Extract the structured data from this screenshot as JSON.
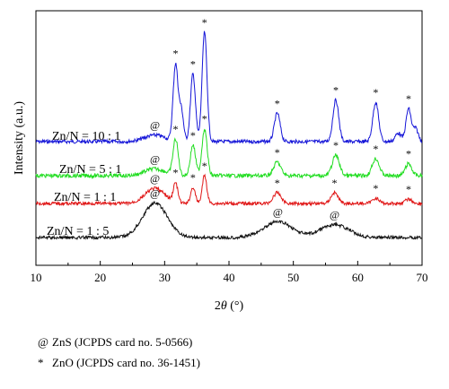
{
  "chart_data": {
    "type": "line",
    "xlabel_pre": "2",
    "xlabel_theta": "θ",
    "xlabel_post": " (°)",
    "ylabel": "Intensity (a.u.)",
    "xlim": [
      10,
      70
    ],
    "xticks": [
      10,
      20,
      30,
      40,
      50,
      60,
      70
    ],
    "grid": false,
    "series": [
      {
        "name": "Zn/N = 10 : 1",
        "color": "#1515d8",
        "peaks": [
          {
            "x": 31.7,
            "h": 0.7,
            "w": 0.38,
            "marker": "*"
          },
          {
            "x": 32.6,
            "h": 0.28,
            "w": 0.34
          },
          {
            "x": 34.4,
            "h": 0.62,
            "w": 0.38,
            "marker": "*"
          },
          {
            "x": 36.2,
            "h": 1.0,
            "w": 0.38,
            "marker": "*"
          },
          {
            "x": 47.5,
            "h": 0.26,
            "w": 0.45,
            "marker": "*"
          },
          {
            "x": 56.6,
            "h": 0.38,
            "w": 0.45,
            "marker": "*"
          },
          {
            "x": 62.8,
            "h": 0.36,
            "w": 0.45,
            "marker": "*"
          },
          {
            "x": 66.3,
            "h": 0.08,
            "w": 0.45
          },
          {
            "x": 67.9,
            "h": 0.3,
            "w": 0.4,
            "marker": "*"
          },
          {
            "x": 69.0,
            "h": 0.12,
            "w": 0.4
          },
          {
            "x": 28.5,
            "h": 0.06,
            "w": 1.6,
            "marker": "@"
          }
        ]
      },
      {
        "name": "Zn/N = 5 : 1",
        "color": "#22dd22",
        "peaks": [
          {
            "x": 28.5,
            "h": 0.08,
            "w": 1.6,
            "marker": "@"
          },
          {
            "x": 31.7,
            "h": 0.42,
            "w": 0.4,
            "marker": "*"
          },
          {
            "x": 34.4,
            "h": 0.36,
            "w": 0.4,
            "marker": "*"
          },
          {
            "x": 36.2,
            "h": 0.55,
            "w": 0.4,
            "marker": "*"
          },
          {
            "x": 47.5,
            "h": 0.16,
            "w": 0.55,
            "marker": "*"
          },
          {
            "x": 56.6,
            "h": 0.24,
            "w": 0.55,
            "marker": "*"
          },
          {
            "x": 62.8,
            "h": 0.2,
            "w": 0.55,
            "marker": "*"
          },
          {
            "x": 67.9,
            "h": 0.14,
            "w": 0.5,
            "marker": "*"
          }
        ]
      },
      {
        "name": "Zn/N = 1 : 1",
        "color": "#e01515",
        "peaks": [
          {
            "x": 28.5,
            "h": 0.14,
            "w": 1.5,
            "marker": "@"
          },
          {
            "x": 31.7,
            "h": 0.18,
            "w": 0.35,
            "marker": "*"
          },
          {
            "x": 34.4,
            "h": 0.15,
            "w": 0.35,
            "marker": "*"
          },
          {
            "x": 36.2,
            "h": 0.26,
            "w": 0.35,
            "marker": "*"
          },
          {
            "x": 47.5,
            "h": 0.1,
            "w": 0.6,
            "marker": "*"
          },
          {
            "x": 56.4,
            "h": 0.1,
            "w": 0.55,
            "marker": "*"
          },
          {
            "x": 62.8,
            "h": 0.05,
            "w": 0.5,
            "marker": "*"
          },
          {
            "x": 67.9,
            "h": 0.04,
            "w": 0.5,
            "marker": "*"
          }
        ]
      },
      {
        "name": "Zn/N = 1 : 5",
        "color": "#111111",
        "peaks": [
          {
            "x": 28.5,
            "h": 0.24,
            "w": 1.9,
            "marker": "@"
          },
          {
            "x": 47.6,
            "h": 0.11,
            "w": 2.2,
            "marker": "@"
          },
          {
            "x": 56.4,
            "h": 0.09,
            "w": 2.2,
            "marker": "@"
          }
        ]
      }
    ],
    "legend": [
      {
        "symbol": "@",
        "text": "ZnS (JCPDS card no. 5-0566)"
      },
      {
        "symbol": "*",
        "text": "ZnO (JCPDS card no. 36-1451)"
      }
    ]
  }
}
